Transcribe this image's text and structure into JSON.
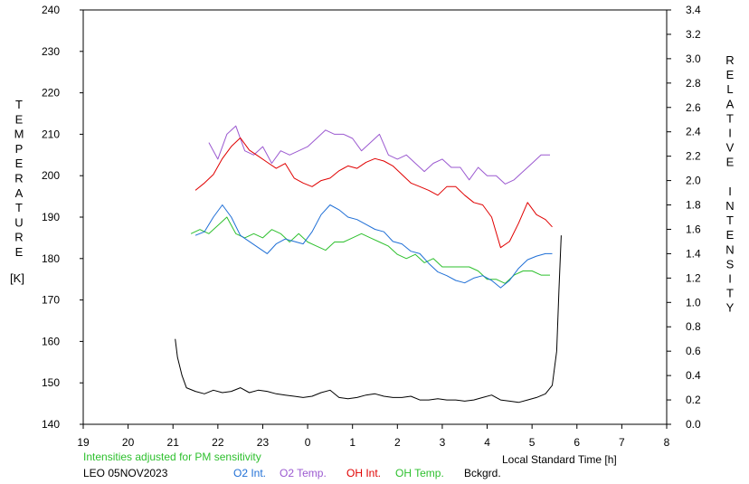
{
  "chart_data": {
    "type": "line",
    "title": "",
    "xlabel": "Local Standard Time [h]",
    "x_ticks": [
      "19",
      "20",
      "21",
      "22",
      "23",
      "0",
      "1",
      "2",
      "3",
      "4",
      "5",
      "6",
      "7",
      "8"
    ],
    "xlim": [
      19,
      32
    ],
    "ylabel_left": "TEMPERATURE",
    "ylabel_left_unit": "[K]",
    "ylim_left": [
      140,
      240
    ],
    "y_ticks_left": [
      "240",
      "230",
      "220",
      "210",
      "200",
      "190",
      "180",
      "170",
      "160",
      "150",
      "140"
    ],
    "ylabel_right": "RELATIVE INTENSITY",
    "ylim_right": [
      0.0,
      3.4
    ],
    "y_ticks_right": [
      "3.4",
      "3.2",
      "3.0",
      "2.8",
      "2.6",
      "2.4",
      "2.2",
      "2.0",
      "1.8",
      "1.6",
      "1.4",
      "1.2",
      "1.0",
      "0.8",
      "0.6",
      "0.4",
      "0.2",
      "0.0"
    ],
    "grid": false,
    "note": "Intensities adjusted for PM sensitivity",
    "station_label": "LEO 05NOV2023",
    "legend": [
      {
        "label": "O2 Int.",
        "color": "#1f6fd6"
      },
      {
        "label": "O2 Temp.",
        "color": "#9b59d0"
      },
      {
        "label": "OH Int.",
        "color": "#e00000"
      },
      {
        "label": "OH Temp.",
        "color": "#2ec02e"
      },
      {
        "label": "Bckgrd.",
        "color": "#000000"
      }
    ],
    "series": [
      {
        "name": "O2 Temp.",
        "axis": "left",
        "color": "#9b59d0",
        "x": [
          21.8,
          22.0,
          22.2,
          22.4,
          22.6,
          22.8,
          23.0,
          23.2,
          23.4,
          23.6,
          23.8,
          24.0,
          24.2,
          24.4,
          24.6,
          24.8,
          25.0,
          25.2,
          25.4,
          25.6,
          25.8,
          26.0,
          26.2,
          26.4,
          26.6,
          26.8,
          27.0,
          27.2,
          27.4,
          27.6,
          27.8,
          28.0,
          28.2,
          28.4,
          28.6,
          28.8,
          29.0,
          29.2,
          29.4
        ],
        "y": [
          208,
          204,
          210,
          212,
          206,
          205,
          207,
          203,
          206,
          205,
          206,
          207,
          209,
          211,
          210,
          210,
          209,
          206,
          208,
          210,
          205,
          204,
          205,
          203,
          201,
          203,
          204,
          202,
          202,
          199,
          202,
          200,
          200,
          198,
          199,
          201,
          203,
          205,
          205
        ]
      },
      {
        "name": "OH Temp.",
        "axis": "left",
        "color": "#2ec02e",
        "x": [
          21.4,
          21.6,
          21.8,
          22.0,
          22.2,
          22.4,
          22.6,
          22.8,
          23.0,
          23.2,
          23.4,
          23.6,
          23.8,
          24.0,
          24.2,
          24.4,
          24.6,
          24.8,
          25.0,
          25.2,
          25.4,
          25.6,
          25.8,
          26.0,
          26.2,
          26.4,
          26.6,
          26.8,
          27.0,
          27.2,
          27.4,
          27.6,
          27.8,
          28.0,
          28.2,
          28.4,
          28.6,
          28.8,
          29.0,
          29.2,
          29.4
        ],
        "y": [
          186,
          187,
          186,
          188,
          190,
          186,
          185,
          186,
          185,
          187,
          186,
          184,
          186,
          184,
          183,
          182,
          184,
          184,
          185,
          186,
          185,
          184,
          183,
          181,
          180,
          181,
          179,
          180,
          178,
          178,
          178,
          178,
          177,
          175,
          175,
          174,
          176,
          177,
          177,
          176,
          176
        ]
      },
      {
        "name": "OH Int.",
        "axis": "right",
        "color": "#e00000",
        "x": [
          21.5,
          21.7,
          21.9,
          22.1,
          22.3,
          22.5,
          22.7,
          22.9,
          23.1,
          23.3,
          23.5,
          23.7,
          23.9,
          24.1,
          24.3,
          24.5,
          24.7,
          24.9,
          25.1,
          25.3,
          25.5,
          25.7,
          25.9,
          26.1,
          26.3,
          26.5,
          26.7,
          26.9,
          27.1,
          27.3,
          27.5,
          27.7,
          27.9,
          28.1,
          28.3,
          28.5,
          28.7,
          28.9,
          29.1,
          29.3,
          29.45
        ],
        "y": [
          1.92,
          1.98,
          2.05,
          2.18,
          2.28,
          2.35,
          2.25,
          2.2,
          2.15,
          2.1,
          2.14,
          2.02,
          1.98,
          1.95,
          2.0,
          2.02,
          2.08,
          2.12,
          2.1,
          2.15,
          2.18,
          2.16,
          2.12,
          2.05,
          1.98,
          1.95,
          1.92,
          1.88,
          1.95,
          1.95,
          1.88,
          1.82,
          1.8,
          1.7,
          1.45,
          1.5,
          1.65,
          1.82,
          1.72,
          1.68,
          1.62
        ]
      },
      {
        "name": "O2 Int.",
        "axis": "right",
        "color": "#1f6fd6",
        "x": [
          21.5,
          21.7,
          21.9,
          22.1,
          22.3,
          22.5,
          22.7,
          22.9,
          23.1,
          23.3,
          23.5,
          23.7,
          23.9,
          24.1,
          24.3,
          24.5,
          24.7,
          24.9,
          25.1,
          25.3,
          25.5,
          25.7,
          25.9,
          26.1,
          26.3,
          26.5,
          26.7,
          26.9,
          27.1,
          27.3,
          27.5,
          27.7,
          27.9,
          28.1,
          28.3,
          28.5,
          28.7,
          28.9,
          29.1,
          29.3,
          29.45
        ],
        "y": [
          1.55,
          1.58,
          1.7,
          1.8,
          1.7,
          1.55,
          1.5,
          1.45,
          1.4,
          1.48,
          1.52,
          1.5,
          1.48,
          1.58,
          1.72,
          1.8,
          1.76,
          1.7,
          1.68,
          1.64,
          1.6,
          1.58,
          1.5,
          1.48,
          1.42,
          1.4,
          1.32,
          1.25,
          1.22,
          1.18,
          1.16,
          1.2,
          1.22,
          1.18,
          1.12,
          1.18,
          1.28,
          1.35,
          1.38,
          1.4,
          1.4
        ]
      },
      {
        "name": "Bckgrd.",
        "axis": "right",
        "color": "#000000",
        "x": [
          21.05,
          21.1,
          21.2,
          21.3,
          21.5,
          21.7,
          21.9,
          22.1,
          22.3,
          22.5,
          22.7,
          22.9,
          23.1,
          23.3,
          23.5,
          23.7,
          23.9,
          24.1,
          24.3,
          24.5,
          24.7,
          24.9,
          25.1,
          25.3,
          25.5,
          25.7,
          25.9,
          26.1,
          26.3,
          26.5,
          26.7,
          26.9,
          27.1,
          27.3,
          27.5,
          27.7,
          27.9,
          28.1,
          28.3,
          28.5,
          28.7,
          28.9,
          29.1,
          29.3,
          29.45,
          29.55,
          29.6,
          29.65
        ],
        "y": [
          0.7,
          0.55,
          0.4,
          0.3,
          0.27,
          0.25,
          0.28,
          0.26,
          0.27,
          0.3,
          0.26,
          0.28,
          0.27,
          0.25,
          0.24,
          0.23,
          0.22,
          0.23,
          0.26,
          0.28,
          0.22,
          0.21,
          0.22,
          0.24,
          0.25,
          0.23,
          0.22,
          0.22,
          0.23,
          0.2,
          0.2,
          0.21,
          0.2,
          0.2,
          0.19,
          0.2,
          0.22,
          0.24,
          0.2,
          0.19,
          0.18,
          0.2,
          0.22,
          0.25,
          0.32,
          0.6,
          1.1,
          1.55
        ]
      }
    ]
  }
}
